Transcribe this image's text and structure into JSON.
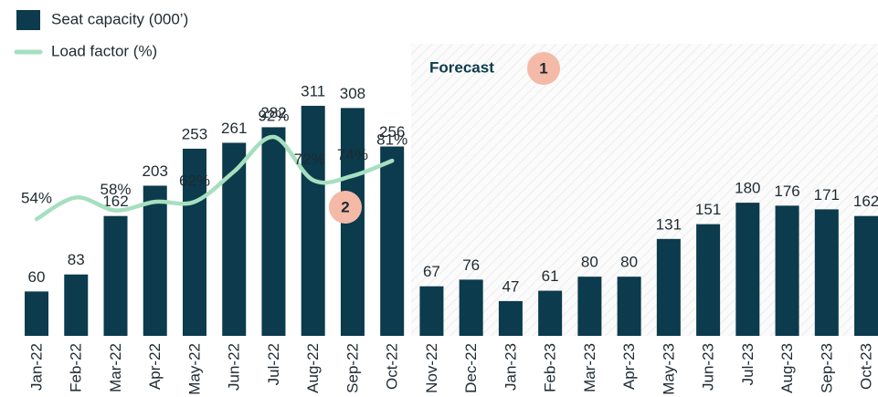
{
  "chart_data": {
    "type": "bar",
    "categories": [
      "Jan-22",
      "Feb-22",
      "Mar-22",
      "Apr-22",
      "May-22",
      "Jun-22",
      "Jul-22",
      "Aug-22",
      "Sep-22",
      "Oct-22",
      "Nov-22",
      "Dec-22",
      "Jan-23",
      "Feb-23",
      "Mar-23",
      "Apr-23",
      "May-23",
      "Jun-23",
      "Jul-23",
      "Aug-23",
      "Sep-23",
      "Oct-23"
    ],
    "series": [
      {
        "name": "Seat capacity (000’)",
        "type": "bar",
        "color": "#0b3b4c",
        "values": [
          60,
          83,
          162,
          203,
          253,
          261,
          282,
          311,
          308,
          256,
          67,
          76,
          47,
          61,
          80,
          80,
          131,
          151,
          180,
          176,
          171,
          162
        ]
      },
      {
        "name": "Load factor (%)",
        "type": "line",
        "axis": "y2",
        "color": "#a6dfbf",
        "values": [
          54,
          64,
          58,
          62,
          62,
          76,
          92,
          72,
          74,
          81,
          null,
          null,
          null,
          null,
          null,
          null,
          null,
          null,
          null,
          null,
          null,
          null
        ],
        "value_labels": [
          "54%",
          null,
          "58%",
          null,
          "62%",
          null,
          "92%",
          "72%",
          "74%",
          "81%",
          null,
          null,
          null,
          null,
          null,
          null,
          null,
          null,
          null,
          null,
          null,
          null
        ]
      }
    ],
    "ylim": [
      0,
      380
    ],
    "y2lim": [
      0,
      130
    ],
    "annotations": [
      "Forecast",
      "1",
      "2"
    ]
  }
}
